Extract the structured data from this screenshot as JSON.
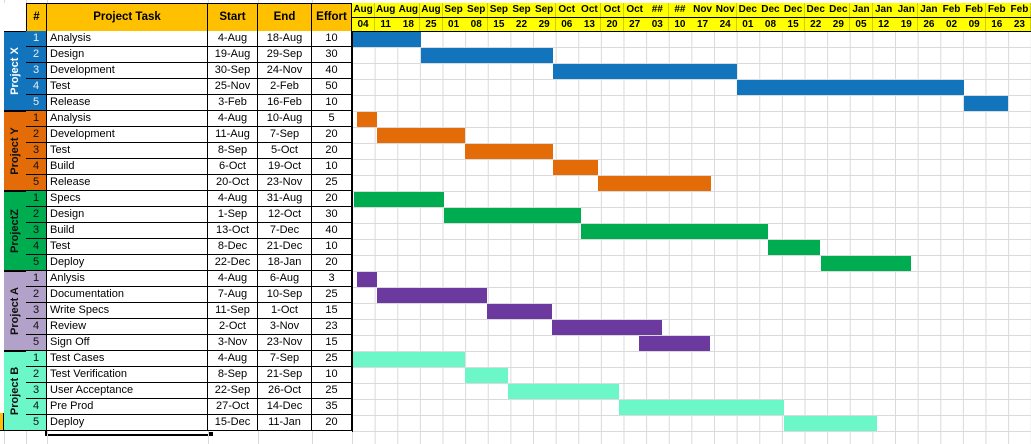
{
  "headers": {
    "num": "#",
    "task": "Project Task",
    "start": "Start",
    "end": "End",
    "effort": "Effort"
  },
  "timeline": {
    "months": [
      "Aug",
      "Aug",
      "Aug",
      "Aug",
      "Sep",
      "Sep",
      "Sep",
      "Sep",
      "Sep",
      "Oct",
      "Oct",
      "Oct",
      "Oct",
      "##",
      "##",
      "Nov",
      "Nov",
      "Dec",
      "Dec",
      "Dec",
      "Dec",
      "Dec",
      "Jan",
      "Jan",
      "Jan",
      "Jan",
      "Feb",
      "Feb",
      "Feb",
      "Feb"
    ],
    "days": [
      "04",
      "11",
      "18",
      "25",
      "01",
      "08",
      "15",
      "22",
      "29",
      "06",
      "13",
      "20",
      "27",
      "03",
      "10",
      "17",
      "24",
      "01",
      "08",
      "15",
      "22",
      "29",
      "05",
      "12",
      "19",
      "26",
      "02",
      "09",
      "16",
      "23"
    ]
  },
  "colors": {
    "header_gold": "#FFC000",
    "timeline_yellow": "#FFFF00",
    "grid_gray": "#DADADA",
    "project_x_blue": "#1274BC",
    "project_y_orange": "#E36C09",
    "project_z_green": "#00AC50",
    "project_a_purple": "#6C3A9E",
    "project_a_lavender": "#B2A1C9",
    "project_b_aqua": "#6BF7C8",
    "comment_marker_green": "#1E7145"
  },
  "projects": [
    {
      "label": "Project X",
      "label_color": "#1274BC",
      "bar_color": "#1274BC",
      "label_text_color": "#FFFFFF",
      "num_text_color": "#EDEDED",
      "tasks": [
        {
          "num": "1",
          "task": "Analysis",
          "start": "4-Aug",
          "end": "18-Aug",
          "effort": "10",
          "bar_start": 0,
          "bar_end": 3.05
        },
        {
          "num": "2",
          "task": "Design",
          "start": "19-Aug",
          "end": "29-Sep",
          "effort": "30",
          "bar_start": 3.05,
          "bar_end": 8.9
        },
        {
          "num": "3",
          "task": "Development",
          "start": "30-Sep",
          "end": "24-Nov",
          "effort": "40",
          "bar_start": 8.9,
          "bar_end": 17.0
        },
        {
          "num": "4",
          "task": "Test",
          "start": "25-Nov",
          "end": "2-Feb",
          "effort": "50",
          "bar_start": 17.0,
          "bar_end": 27.05
        },
        {
          "num": "5",
          "task": "Release",
          "start": "3-Feb",
          "end": "16-Feb",
          "effort": "10",
          "bar_start": 27.05,
          "bar_end": 29.0
        }
      ]
    },
    {
      "label": "Project Y",
      "label_color": "#E36C09",
      "bar_color": "#E36C09",
      "label_text_color": "#111111",
      "num_text_color": "#111111",
      "tasks": [
        {
          "num": "1",
          "task": "Analysis",
          "start": "4-Aug",
          "end": "10-Aug",
          "effort": "5",
          "bar_start": 0.2,
          "bar_end": 1.1
        },
        {
          "num": "2",
          "task": "Development",
          "start": "11-Aug",
          "end": "7-Sep",
          "effort": "20",
          "bar_start": 1.1,
          "bar_end": 5.0
        },
        {
          "num": "3",
          "task": "Test",
          "start": "8-Sep",
          "end": "5-Oct",
          "effort": "20",
          "bar_start": 5.0,
          "bar_end": 8.9
        },
        {
          "num": "4",
          "task": "Build",
          "start": "6-Oct",
          "end": "19-Oct",
          "effort": "10",
          "bar_start": 8.9,
          "bar_end": 10.85
        },
        {
          "num": "5",
          "task": "Release",
          "start": "20-Oct",
          "end": "23-Nov",
          "effort": "25",
          "bar_start": 10.85,
          "bar_end": 15.85
        }
      ]
    },
    {
      "label": "ProjectZ",
      "label_color": "#00AC50",
      "bar_color": "#00AC50",
      "label_text_color": "#111111",
      "num_text_color": "#111111",
      "tasks": [
        {
          "num": "1",
          "task": "Specs",
          "start": "4-Aug",
          "end": "31-Aug",
          "effort": "20",
          "bar_start": 0.1,
          "bar_end": 4.05,
          "comment_marker": true
        },
        {
          "num": "2",
          "task": "Design",
          "start": "1-Sep",
          "end": "12-Oct",
          "effort": "30",
          "bar_start": 4.05,
          "bar_end": 10.1
        },
        {
          "num": "3",
          "task": "Build",
          "start": "13-Oct",
          "end": "7-Dec",
          "effort": "40",
          "bar_start": 10.1,
          "bar_end": 18.4
        },
        {
          "num": "4",
          "task": "Test",
          "start": "8-Dec",
          "end": "21-Dec",
          "effort": "10",
          "bar_start": 18.4,
          "bar_end": 20.7
        },
        {
          "num": "5",
          "task": "Deploy",
          "start": "22-Dec",
          "end": "18-Jan",
          "effort": "20",
          "bar_start": 20.7,
          "bar_end": 24.7
        }
      ]
    },
    {
      "label": "Project A",
      "label_color": "#B2A1C9",
      "bar_color": "#6C3A9E",
      "label_text_color": "#111111",
      "num_text_color": "#111111",
      "tasks": [
        {
          "num": "1",
          "task": "Anlysis",
          "start": "4-Aug",
          "end": "6-Aug",
          "effort": "3",
          "bar_start": 0.2,
          "bar_end": 1.1
        },
        {
          "num": "2",
          "task": "Documentation",
          "start": "7-Aug",
          "end": "10-Sep",
          "effort": "25",
          "bar_start": 1.1,
          "bar_end": 5.95
        },
        {
          "num": "3",
          "task": "Write Specs",
          "start": "11-Sep",
          "end": "1-Oct",
          "effort": "15",
          "bar_start": 5.95,
          "bar_end": 8.85
        },
        {
          "num": "4",
          "task": "Review",
          "start": "2-Oct",
          "end": "3-Nov",
          "effort": "23",
          "bar_start": 8.85,
          "bar_end": 13.7
        },
        {
          "num": "5",
          "task": "Sign Off",
          "start": "3-Nov",
          "end": "23-Nov",
          "effort": "15",
          "bar_start": 12.7,
          "bar_end": 15.8
        }
      ]
    },
    {
      "label": "Project B",
      "label_color": "#6BF7C8",
      "bar_color": "#6BF7C8",
      "label_text_color": "#111111",
      "num_text_color": "#111111",
      "tasks": [
        {
          "num": "1",
          "task": "Test Cases",
          "start": "4-Aug",
          "end": "7-Sep",
          "effort": "25",
          "bar_start": 0.05,
          "bar_end": 5.0
        },
        {
          "num": "2",
          "task": "Test Verification",
          "start": "8-Sep",
          "end": "21-Sep",
          "effort": "10",
          "bar_start": 5.0,
          "bar_end": 6.9
        },
        {
          "num": "3",
          "task": "User Acceptance",
          "start": "22-Sep",
          "end": "26-Oct",
          "effort": "25",
          "bar_start": 6.9,
          "bar_end": 11.8
        },
        {
          "num": "4",
          "task": "Pre Prod",
          "start": "27-Oct",
          "end": "14-Dec",
          "effort": "35",
          "bar_start": 11.8,
          "bar_end": 19.1
        },
        {
          "num": "5",
          "task": "Deploy",
          "start": "15-Dec",
          "end": "11-Jan",
          "effort": "20",
          "bar_start": 19.1,
          "bar_end": 23.2,
          "selected": true
        }
      ]
    }
  ],
  "selection": {
    "project": "Project B",
    "task": "Deploy"
  }
}
